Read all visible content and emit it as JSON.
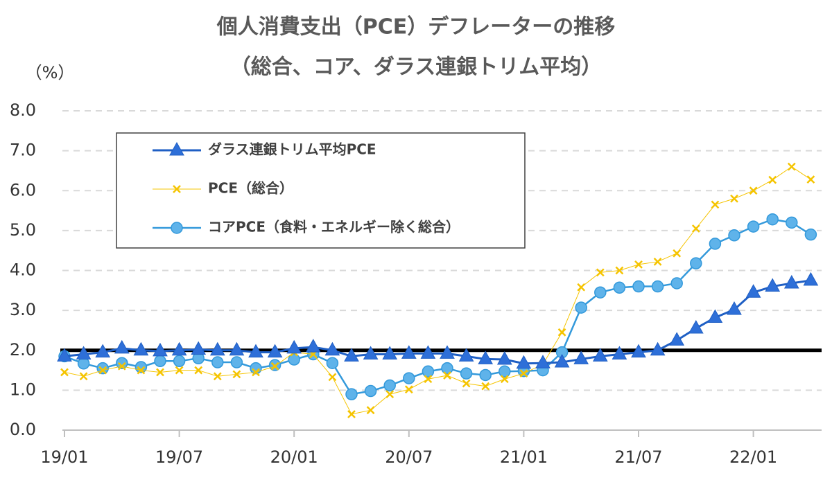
{
  "chart_data": {
    "type": "line",
    "title": "個人消費支出（PCE）デフレーターの推移",
    "subtitle": "（総合、コア、ダラス連銀トリム平均）",
    "y_label": "（%）",
    "categories": [
      "19/01",
      null,
      null,
      null,
      null,
      null,
      "19/07",
      null,
      null,
      null,
      null,
      null,
      "20/01",
      null,
      null,
      null,
      null,
      null,
      "20/07",
      null,
      null,
      null,
      null,
      null,
      "21/01",
      null,
      null,
      null,
      null,
      null,
      "21/07",
      null,
      null,
      null,
      null,
      null,
      "22/01",
      null,
      null,
      null
    ],
    "series": [
      {
        "name": "ダラス連銀トリム平均PCE",
        "color": "#1f5fc4",
        "marker": "triangle",
        "values": [
          1.85,
          1.9,
          1.95,
          2.05,
          2.0,
          1.98,
          2.0,
          2.02,
          2.0,
          2.0,
          1.95,
          1.95,
          2.05,
          2.08,
          2.0,
          1.85,
          1.9,
          1.9,
          1.92,
          1.92,
          1.92,
          1.85,
          1.78,
          1.77,
          1.67,
          1.68,
          1.7,
          1.78,
          1.85,
          1.9,
          1.95,
          2.0,
          2.25,
          2.55,
          2.82,
          3.02,
          3.45,
          3.6,
          3.68,
          3.75
        ]
      },
      {
        "name": "PCE（総合）",
        "color": "#f5c400",
        "marker": "x",
        "values": [
          1.45,
          1.35,
          1.5,
          1.6,
          1.5,
          1.45,
          1.5,
          1.5,
          1.35,
          1.4,
          1.45,
          1.6,
          1.95,
          1.9,
          1.33,
          0.4,
          0.5,
          0.9,
          1.02,
          1.28,
          1.37,
          1.17,
          1.1,
          1.28,
          1.42,
          1.65,
          2.45,
          3.58,
          3.95,
          4.0,
          4.15,
          4.22,
          4.43,
          5.05,
          5.65,
          5.8,
          6.0,
          6.27,
          6.6,
          6.28
        ]
      },
      {
        "name": "コアPCE（食料・エネルギー除く総合）",
        "color": "#3399db",
        "marker": "circle",
        "values": [
          1.85,
          1.67,
          1.55,
          1.68,
          1.58,
          1.73,
          1.73,
          1.8,
          1.7,
          1.7,
          1.55,
          1.63,
          1.77,
          1.9,
          1.68,
          0.9,
          0.98,
          1.12,
          1.3,
          1.47,
          1.55,
          1.42,
          1.38,
          1.47,
          1.48,
          1.5,
          1.95,
          3.07,
          3.45,
          3.57,
          3.6,
          3.6,
          3.68,
          4.18,
          4.67,
          4.88,
          5.1,
          5.28,
          5.2,
          4.9
        ]
      }
    ],
    "hline": {
      "value": 2.0,
      "color": "#000000"
    },
    "ylim": [
      0,
      8
    ],
    "yticks": [
      {
        "value": 0,
        "label": "0.0"
      },
      {
        "value": 1,
        "label": "1.0"
      },
      {
        "value": 2,
        "label": "2.0"
      },
      {
        "value": 3,
        "label": "3.0"
      },
      {
        "value": 4,
        "label": "4.0"
      },
      {
        "value": 5,
        "label": "5.0"
      },
      {
        "value": 6,
        "label": "6.0"
      },
      {
        "value": 7,
        "label": "7.0"
      },
      {
        "value": 8,
        "label": "8.0"
      }
    ],
    "grid": true,
    "legend": "upper left"
  }
}
